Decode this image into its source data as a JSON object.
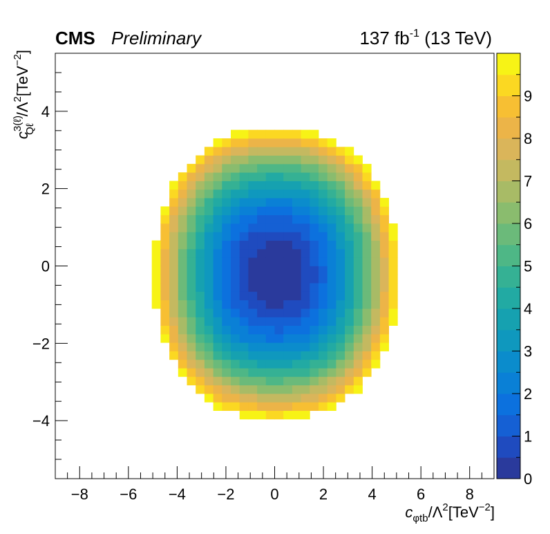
{
  "header": {
    "experiment": "CMS",
    "status": "Preliminary",
    "luminosity_number": "137 fb",
    "luminosity_exponent": "-1",
    "energy": " (13 TeV)"
  },
  "axes": {
    "xlabel_symbol": "c",
    "xlabel_subscript": "φtb",
    "xlabel_slash": "/Λ",
    "xlabel_sq": "2",
    "xlabel_unit": "[TeV",
    "xlabel_unit_exp": "−2",
    "xlabel_close": "]",
    "ylabel_symbol": "c",
    "ylabel_superscript": "3(ℓ)",
    "ylabel_subscript": "Qℓ",
    "ylabel_slash": "/Λ",
    "ylabel_sq": "2",
    "ylabel_unit": "[TeV",
    "ylabel_unit_exp": "−2",
    "ylabel_close": "]"
  },
  "chart_data": {
    "type": "heatmap",
    "x_range": [
      -9,
      9
    ],
    "y_range": [
      -5.5,
      5.5
    ],
    "x_ticks": [
      -8,
      -6,
      -4,
      -2,
      0,
      2,
      4,
      6,
      8
    ],
    "x_tick_labels": [
      "−8",
      "−6",
      "−4",
      "−2",
      "0",
      "2",
      "4",
      "6",
      "8"
    ],
    "y_ticks": [
      -4,
      -2,
      0,
      2,
      4
    ],
    "y_tick_labels": [
      "−4",
      "−2",
      "0",
      "2",
      "4"
    ],
    "z_range": [
      0,
      10
    ],
    "z_ticks": [
      0,
      1,
      2,
      3,
      4,
      5,
      6,
      7,
      8,
      9
    ],
    "z_tick_labels": [
      "0",
      "1",
      "2",
      "3",
      "4",
      "5",
      "6",
      "7",
      "8",
      "9"
    ],
    "color_levels": 20,
    "palette": [
      "#2a3a9c",
      "#1f4bbf",
      "#1560d4",
      "#0c71de",
      "#0a80d6",
      "#0b8ccc",
      "#0f98be",
      "#16a1b0",
      "#22aaa3",
      "#35b194",
      "#4eb786",
      "#6bba7a",
      "#8abc6e",
      "#a8bb66",
      "#c4b960",
      "#dab55a",
      "#ecb448",
      "#f7bf33",
      "#fbd822",
      "#f7f316"
    ],
    "grid": false,
    "distribution": {
      "center": [
        0.05,
        -0.2
      ],
      "x_scale_at_z10": 5.0,
      "y_scale_at_z10": 3.75,
      "contour_z": 10
    },
    "bin_width_x": 0.36,
    "bin_width_y": 0.22
  }
}
